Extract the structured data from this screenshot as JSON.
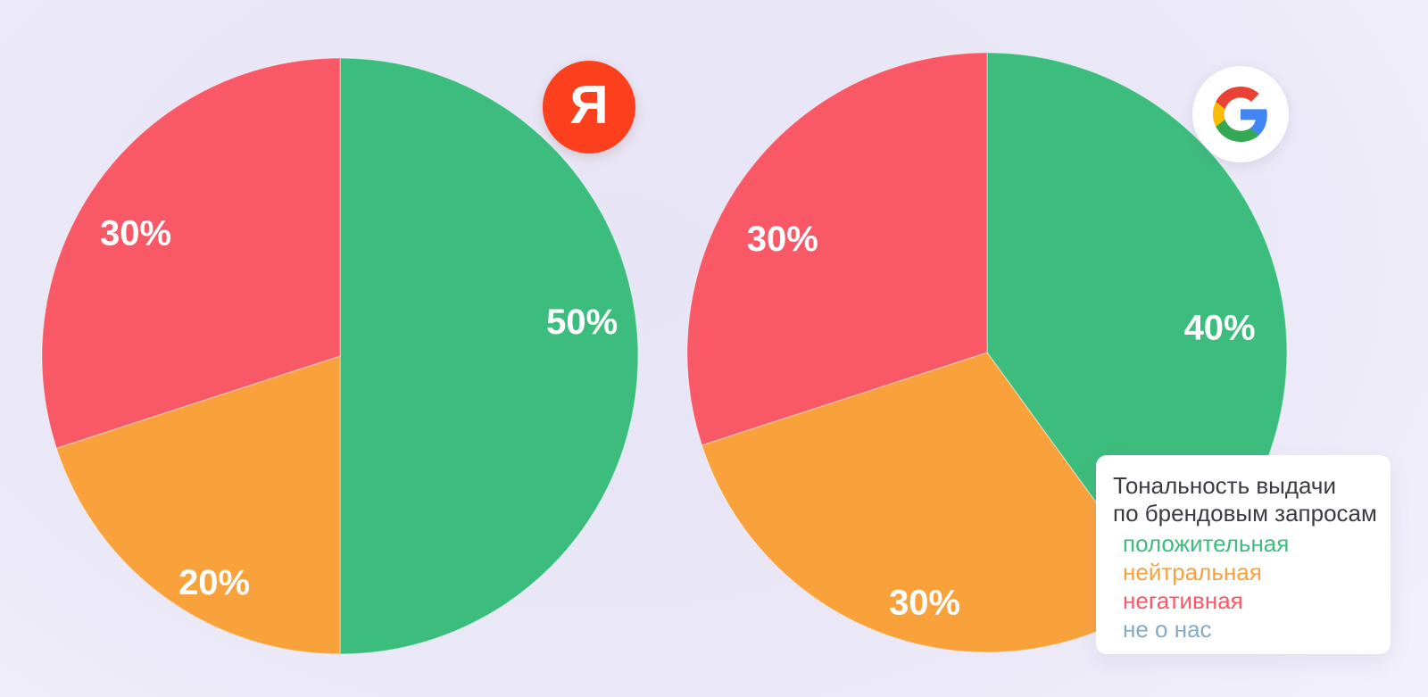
{
  "colors": {
    "positive_green": "#3dbd7d",
    "neutral_orange": "#f9a23c",
    "negative_red": "#f95966",
    "not_about_us_blue": "#84abc6",
    "yandex_red": "#fc3f1d",
    "legend_title_text": "#3b3b44",
    "percent_label_text": "#ffffff"
  },
  "logos": {
    "yandex_letter": "Я",
    "google_letter": "G"
  },
  "legend": {
    "title_line1": "Тональность выдачи",
    "title_line2": "по брендовым запросам",
    "items": [
      {
        "label": "положительная",
        "color": "#3dbd7d"
      },
      {
        "label": "нейтральная",
        "color": "#f9a23c"
      },
      {
        "label": "негативная",
        "color": "#f95966"
      },
      {
        "label": "не о нас",
        "color": "#84abc6"
      }
    ]
  },
  "chart_data": [
    {
      "type": "pie",
      "engine": "Yandex",
      "legend_title": "Тональность выдачи по брендовым запросам",
      "units": "%",
      "start_angle_deg_from_top": 0,
      "direction": "clockwise",
      "slices": [
        {
          "label": "положительная",
          "value": 50,
          "display": "50%",
          "color": "#3dbd7d"
        },
        {
          "label": "нейтральная",
          "value": 20,
          "display": "20%",
          "color": "#f9a23c"
        },
        {
          "label": "негативная",
          "value": 30,
          "display": "30%",
          "color": "#f95966"
        }
      ]
    },
    {
      "type": "pie",
      "engine": "Google",
      "legend_title": "Тональность выдачи по брендовым запросам",
      "units": "%",
      "start_angle_deg_from_top": 0,
      "direction": "clockwise",
      "slices": [
        {
          "label": "положительная",
          "value": 40,
          "display": "40%",
          "color": "#3dbd7d"
        },
        {
          "label": "нейтральная",
          "value": 30,
          "display": "30%",
          "color": "#f9a23c"
        },
        {
          "label": "негативная",
          "value": 30,
          "display": "30%",
          "color": "#f95966"
        }
      ]
    }
  ]
}
